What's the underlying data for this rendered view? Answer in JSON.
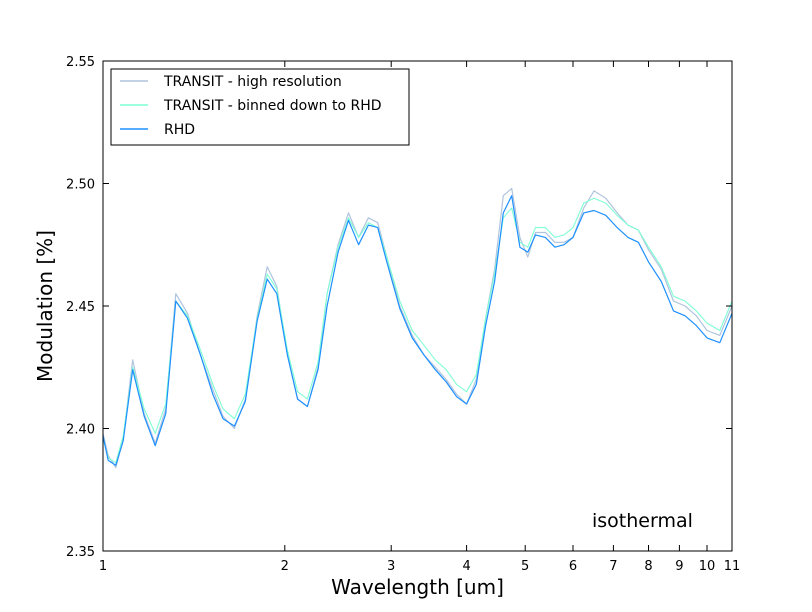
{
  "chart_data": {
    "type": "line",
    "xlabel": "Wavelength [um]",
    "ylabel": "Modulation [%]",
    "x_scale": "log",
    "xlim": [
      1,
      11
    ],
    "ylim": [
      2.35,
      2.55
    ],
    "x_ticks": [
      1,
      2,
      3,
      4,
      5,
      6,
      7,
      8,
      9,
      10,
      11
    ],
    "x_tick_labels": [
      "1",
      "2",
      "3",
      "4",
      "5",
      "6",
      "7",
      "8",
      "9",
      "10",
      "11"
    ],
    "y_ticks": [
      2.35,
      2.4,
      2.45,
      2.5,
      2.55
    ],
    "y_tick_labels": [
      "2.35",
      "2.40",
      "2.45",
      "2.50",
      "2.55"
    ],
    "grid": false,
    "legend_position": "top-left",
    "annotation": "isothermal",
    "series": [
      {
        "name": "TRANSIT - high resolution",
        "color": "#b0c4de",
        "x": [
          1.0,
          1.02,
          1.05,
          1.08,
          1.12,
          1.17,
          1.22,
          1.27,
          1.32,
          1.38,
          1.45,
          1.52,
          1.58,
          1.65,
          1.72,
          1.8,
          1.87,
          1.94,
          2.02,
          2.1,
          2.18,
          2.27,
          2.35,
          2.45,
          2.55,
          2.65,
          2.75,
          2.85,
          2.95,
          3.1,
          3.25,
          3.4,
          3.55,
          3.7,
          3.85,
          4.0,
          4.15,
          4.3,
          4.45,
          4.6,
          4.75,
          4.9,
          5.05,
          5.2,
          5.4,
          5.6,
          5.8,
          6.0,
          6.25,
          6.5,
          6.8,
          7.1,
          7.4,
          7.7,
          8.0,
          8.4,
          8.8,
          9.2,
          9.6,
          10.0,
          10.5,
          11.0
        ],
        "y": [
          2.398,
          2.389,
          2.384,
          2.396,
          2.428,
          2.406,
          2.394,
          2.408,
          2.455,
          2.447,
          2.43,
          2.416,
          2.405,
          2.4,
          2.412,
          2.446,
          2.466,
          2.458,
          2.43,
          2.412,
          2.409,
          2.425,
          2.455,
          2.475,
          2.488,
          2.478,
          2.486,
          2.484,
          2.47,
          2.45,
          2.438,
          2.43,
          2.425,
          2.42,
          2.414,
          2.41,
          2.42,
          2.445,
          2.465,
          2.495,
          2.498,
          2.478,
          2.47,
          2.48,
          2.48,
          2.476,
          2.476,
          2.478,
          2.49,
          2.497,
          2.494,
          2.488,
          2.483,
          2.481,
          2.473,
          2.465,
          2.452,
          2.45,
          2.446,
          2.44,
          2.438,
          2.45
        ]
      },
      {
        "name": "TRANSIT - binned down to RHD",
        "color": "#7fffd4",
        "x": [
          1.0,
          1.02,
          1.05,
          1.08,
          1.12,
          1.17,
          1.22,
          1.27,
          1.32,
          1.38,
          1.45,
          1.52,
          1.58,
          1.65,
          1.72,
          1.8,
          1.87,
          1.94,
          2.02,
          2.1,
          2.18,
          2.27,
          2.35,
          2.45,
          2.55,
          2.65,
          2.75,
          2.85,
          2.95,
          3.1,
          3.25,
          3.4,
          3.55,
          3.7,
          3.85,
          4.0,
          4.15,
          4.3,
          4.45,
          4.6,
          4.75,
          4.9,
          5.05,
          5.2,
          5.4,
          5.6,
          5.8,
          6.0,
          6.25,
          6.5,
          6.8,
          7.1,
          7.4,
          7.7,
          8.0,
          8.4,
          8.8,
          9.2,
          9.6,
          10.0,
          10.5,
          11.0
        ],
        "y": [
          2.396,
          2.388,
          2.386,
          2.397,
          2.425,
          2.408,
          2.398,
          2.41,
          2.452,
          2.446,
          2.432,
          2.418,
          2.408,
          2.404,
          2.414,
          2.445,
          2.463,
          2.457,
          2.432,
          2.415,
          2.412,
          2.427,
          2.455,
          2.474,
          2.486,
          2.478,
          2.484,
          2.482,
          2.47,
          2.452,
          2.44,
          2.434,
          2.428,
          2.424,
          2.418,
          2.415,
          2.422,
          2.445,
          2.463,
          2.486,
          2.49,
          2.476,
          2.474,
          2.482,
          2.482,
          2.478,
          2.479,
          2.482,
          2.492,
          2.494,
          2.492,
          2.487,
          2.483,
          2.481,
          2.474,
          2.466,
          2.454,
          2.452,
          2.448,
          2.443,
          2.44,
          2.452
        ]
      },
      {
        "name": "RHD",
        "color": "#1e90ff",
        "x": [
          1.0,
          1.02,
          1.05,
          1.08,
          1.12,
          1.17,
          1.22,
          1.27,
          1.32,
          1.38,
          1.45,
          1.52,
          1.58,
          1.65,
          1.72,
          1.8,
          1.87,
          1.94,
          2.02,
          2.1,
          2.18,
          2.27,
          2.35,
          2.45,
          2.55,
          2.65,
          2.75,
          2.85,
          2.95,
          3.1,
          3.25,
          3.4,
          3.55,
          3.7,
          3.85,
          4.0,
          4.15,
          4.3,
          4.45,
          4.6,
          4.75,
          4.9,
          5.05,
          5.2,
          5.4,
          5.6,
          5.8,
          6.0,
          6.25,
          6.5,
          6.8,
          7.1,
          7.4,
          7.7,
          8.0,
          8.4,
          8.8,
          9.2,
          9.6,
          10.0,
          10.5,
          11.0
        ],
        "y": [
          2.397,
          2.387,
          2.385,
          2.395,
          2.424,
          2.405,
          2.393,
          2.406,
          2.452,
          2.445,
          2.43,
          2.414,
          2.404,
          2.401,
          2.411,
          2.444,
          2.461,
          2.455,
          2.43,
          2.412,
          2.409,
          2.424,
          2.45,
          2.472,
          2.485,
          2.475,
          2.483,
          2.482,
          2.468,
          2.449,
          2.437,
          2.43,
          2.424,
          2.419,
          2.413,
          2.41,
          2.418,
          2.442,
          2.46,
          2.488,
          2.495,
          2.474,
          2.472,
          2.479,
          2.478,
          2.474,
          2.475,
          2.478,
          2.488,
          2.489,
          2.487,
          2.482,
          2.478,
          2.476,
          2.468,
          2.46,
          2.448,
          2.446,
          2.442,
          2.437,
          2.435,
          2.447
        ]
      }
    ]
  }
}
